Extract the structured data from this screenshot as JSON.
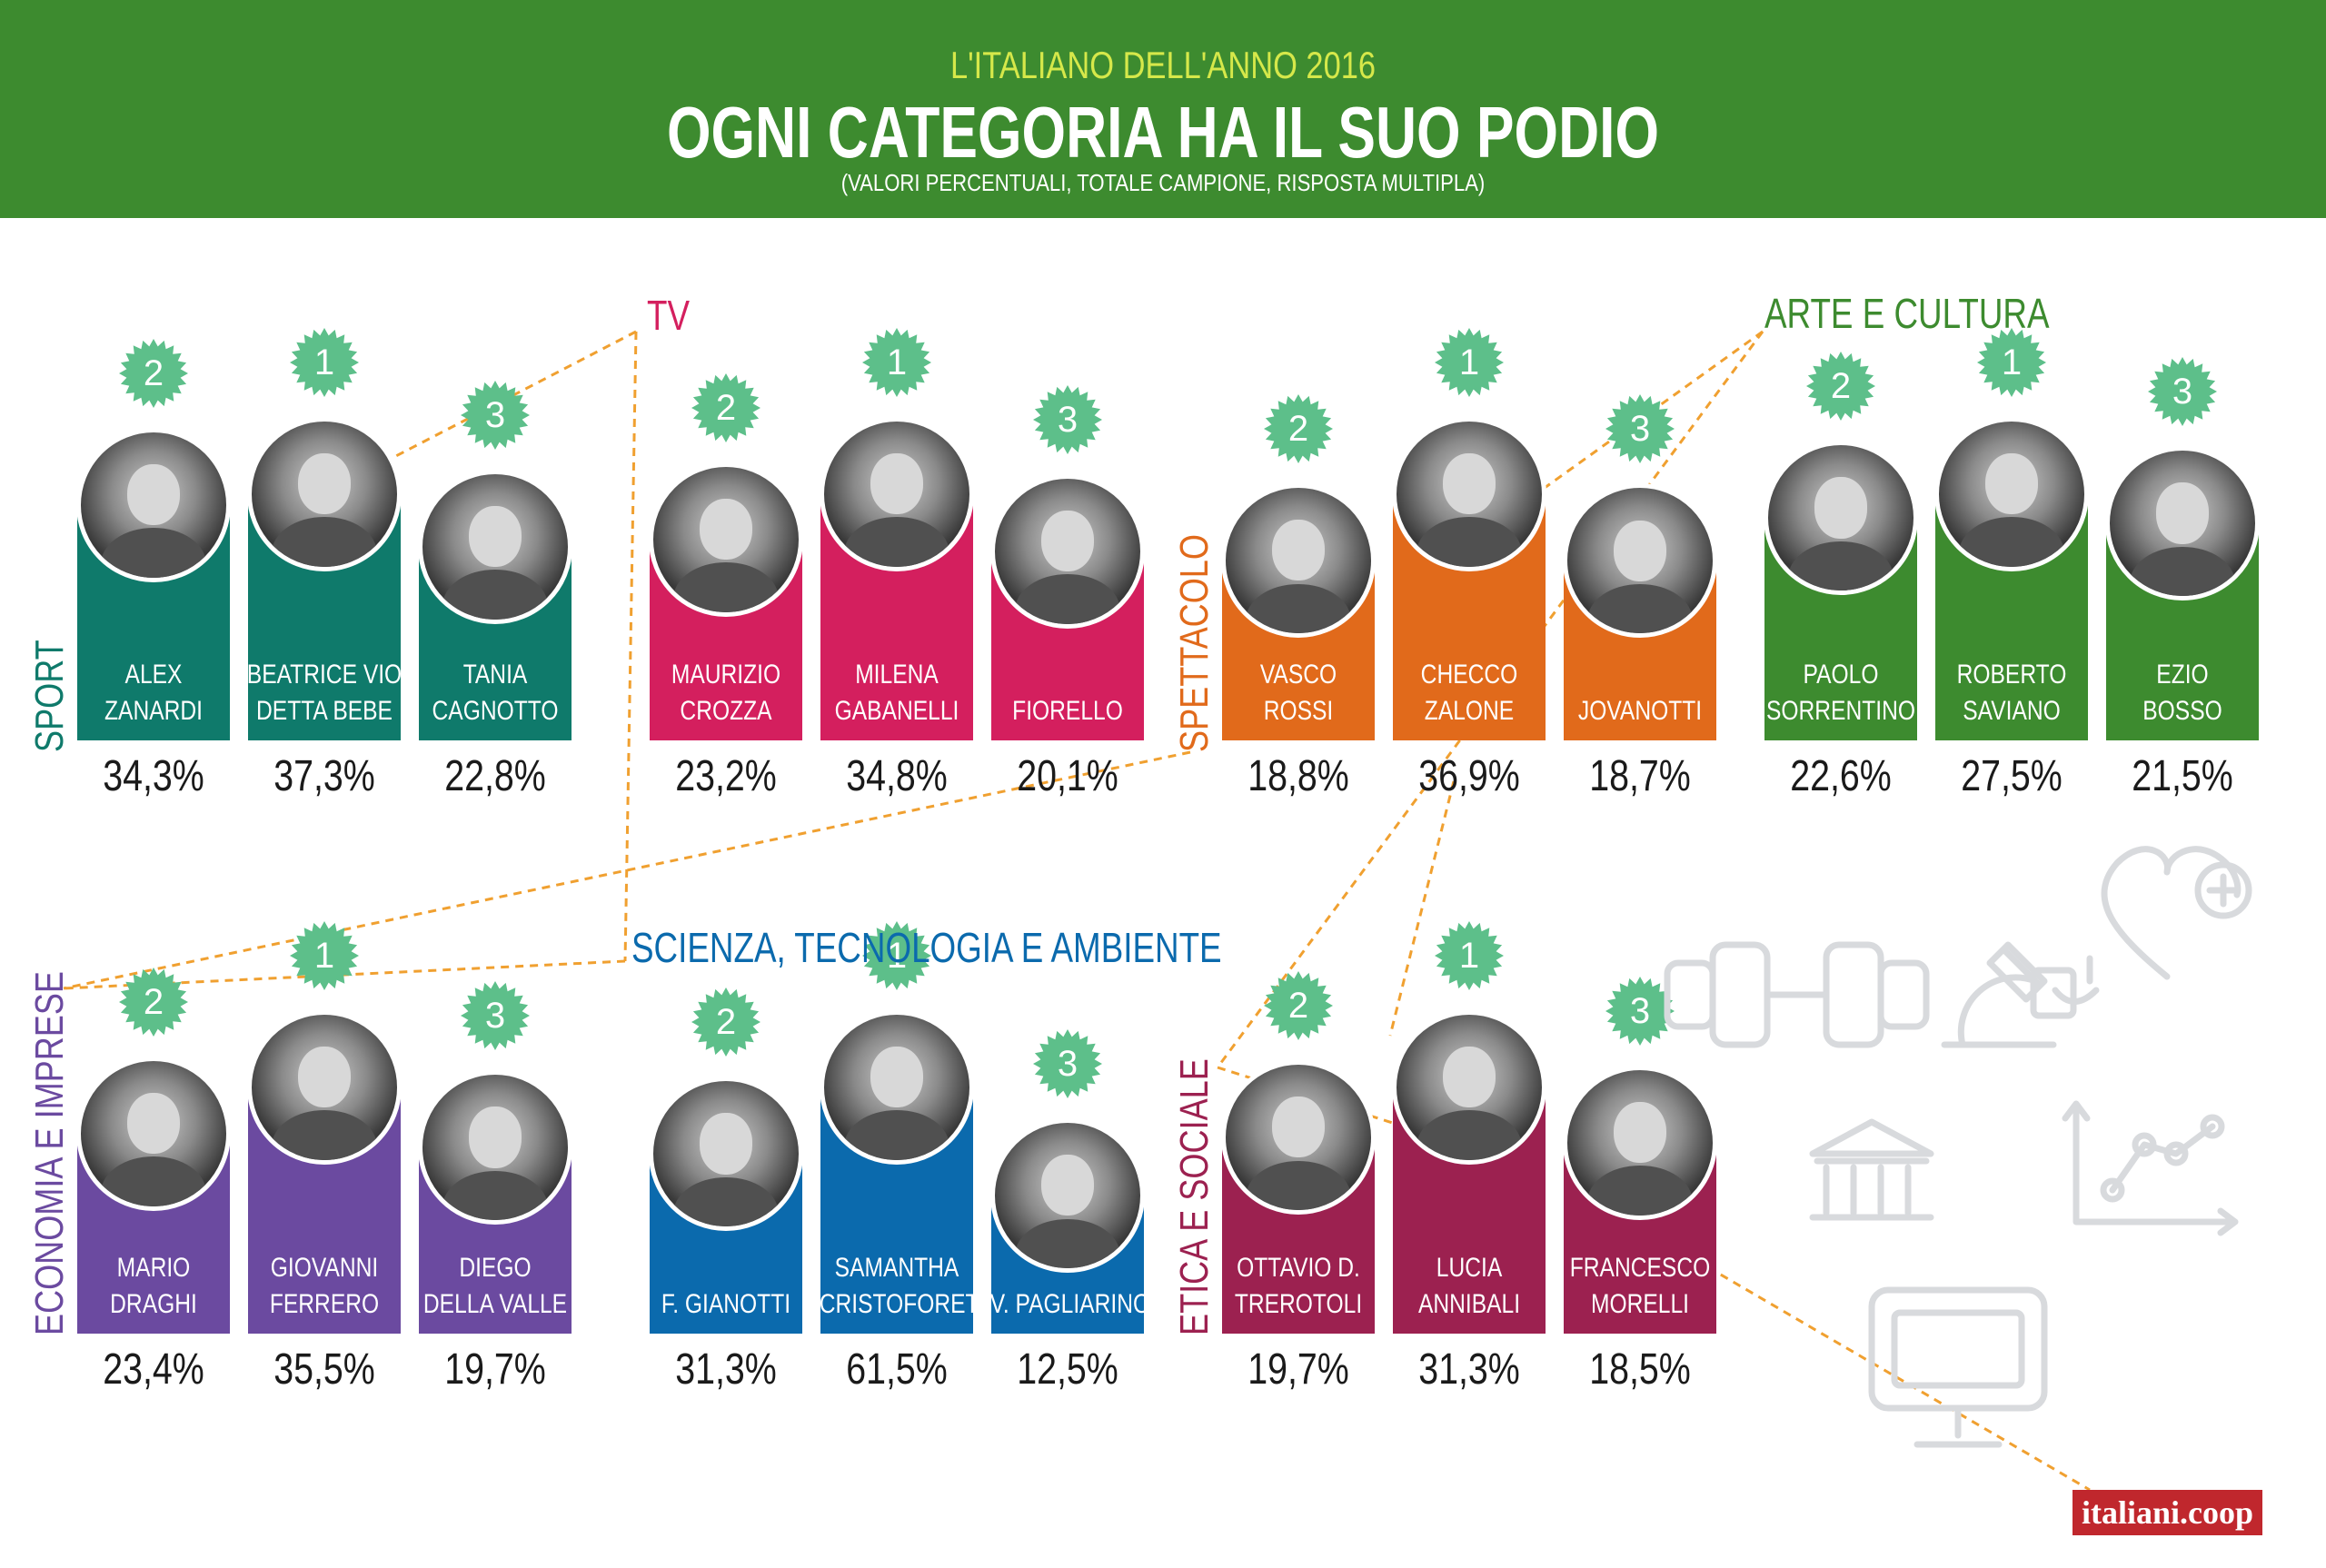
{
  "header": {
    "supertitle": "L'ITALIANO DELL'ANNO 2016",
    "title": "OGNI CATEGORIA HA IL SUO PODIO",
    "subtitle": "(VALORI PERCENTUALI, TOTALE CAMPIONE, RISPOSTA MULTIPLA)"
  },
  "colors": {
    "header_green": "#3d8b2f",
    "sport": "#0f7a6b",
    "tv": "#d41f5e",
    "spettacolo": "#e16a1b",
    "arte": "#3d8b2f",
    "economia": "#6b4aa0",
    "scienza": "#0b6aad",
    "etica": "#9c2150",
    "rank_star": "#5dbf8a",
    "connector": "#f0a030"
  },
  "brand": "italiani.coop",
  "chart_data": [
    {
      "type": "bar",
      "title": "SPORT",
      "categories": [
        "ALEX ZANARDI",
        "BEATRICE VIO DETTA BEBE",
        "TANIA CAGNOTTO"
      ],
      "ranks": [
        2,
        1,
        3
      ],
      "values": [
        34.3,
        37.3,
        22.8
      ],
      "labels": [
        "34,3%",
        "37,3%",
        "22,8%"
      ]
    },
    {
      "type": "bar",
      "title": "TV",
      "categories": [
        "MAURIZIO CROZZA",
        "MILENA GABANELLI",
        "FIORELLO"
      ],
      "ranks": [
        2,
        1,
        3
      ],
      "values": [
        23.2,
        34.8,
        20.1
      ],
      "labels": [
        "23,2%",
        "34,8%",
        "20,1%"
      ]
    },
    {
      "type": "bar",
      "title": "SPETTACOLO",
      "categories": [
        "VASCO ROSSI",
        "CHECCO ZALONE",
        "JOVANOTTI"
      ],
      "ranks": [
        2,
        1,
        3
      ],
      "values": [
        18.8,
        36.9,
        18.7
      ],
      "labels": [
        "18,8%",
        "36,9%",
        "18,7%"
      ]
    },
    {
      "type": "bar",
      "title": "ARTE E CULTURA",
      "categories": [
        "PAOLO SORRENTINO",
        "ROBERTO SAVIANO",
        "EZIO BOSSO"
      ],
      "ranks": [
        2,
        1,
        3
      ],
      "values": [
        22.6,
        27.5,
        21.5
      ],
      "labels": [
        "22,6%",
        "27,5%",
        "21,5%"
      ]
    },
    {
      "type": "bar",
      "title": "ECONOMIA E IMPRESE",
      "categories": [
        "MARIO DRAGHI",
        "GIOVANNI FERRERO",
        "DIEGO DELLA VALLE"
      ],
      "ranks": [
        2,
        1,
        3
      ],
      "values": [
        23.4,
        35.5,
        19.7
      ],
      "labels": [
        "23,4%",
        "35,5%",
        "19,7%"
      ]
    },
    {
      "type": "bar",
      "title": "SCIENZA, TECNOLOGIA E AMBIENTE",
      "categories": [
        "F. GIANOTTI",
        "SAMANTHA CRISTOFORETTI",
        "V. PAGLIARINO"
      ],
      "ranks": [
        2,
        1,
        3
      ],
      "values": [
        31.3,
        61.5,
        12.5
      ],
      "labels": [
        "31,3%",
        "61,5%",
        "12,5%"
      ]
    },
    {
      "type": "bar",
      "title": "ETICA E SOCIALE",
      "categories": [
        "OTTAVIO D. TREROTOLI",
        "LUCIA ANNIBALI",
        "FRANCESCO MORELLI"
      ],
      "ranks": [
        2,
        1,
        3
      ],
      "values": [
        19.7,
        31.3,
        18.5
      ],
      "labels": [
        "19,7%",
        "31,3%",
        "18,5%"
      ]
    }
  ]
}
